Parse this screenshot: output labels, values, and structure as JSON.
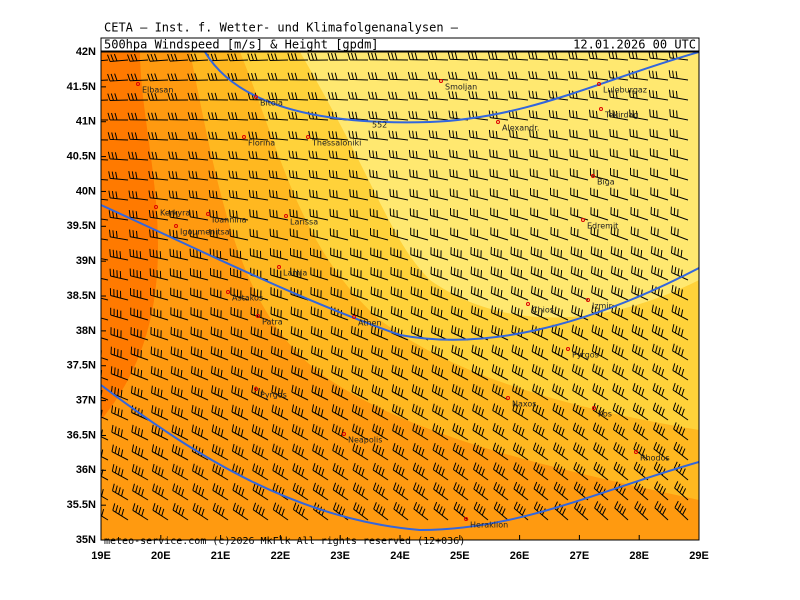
{
  "header": {
    "institute": "CETA – Inst. f. Wetter- und Klimafolgenanalysen –",
    "product": "500hpa Windspeed [m/s] & Height [gpdm]",
    "valid": "12.01.2026 00 UTC"
  },
  "axes": {
    "lat": [
      "42N",
      "41.5N",
      "41N",
      "40.5N",
      "40N",
      "39.5N",
      "39N",
      "38.5N",
      "38N",
      "37.5N",
      "37N",
      "36.5N",
      "36N",
      "35.5N",
      "35N"
    ],
    "lon": [
      "19E",
      "20E",
      "21E",
      "22E",
      "23E",
      "24E",
      "25E",
      "26E",
      "27E",
      "28E",
      "29E"
    ]
  },
  "cities": [
    "Elbasan",
    "Bitola",
    "Florina",
    "Thessaloniki",
    "Smoljan",
    "Luleburgaz",
    "Alexandr.",
    "Tekirdag",
    "Biga",
    "Edremit",
    "Kerkyra",
    "Ioannina",
    "Igoumenitsa",
    "Larissa",
    "Lamia",
    "Astakos",
    "Patra",
    "Athen",
    "Chios",
    "Izmir",
    "Pyrgos",
    "Pyrgos",
    "Naxos",
    "Kos",
    "Neapolis",
    "Heraklion",
    "Rhodos"
  ],
  "contour_label": "552",
  "footer": "meteo-service.com (c)2026 MkFlk All rights reserved (12+036)"
}
